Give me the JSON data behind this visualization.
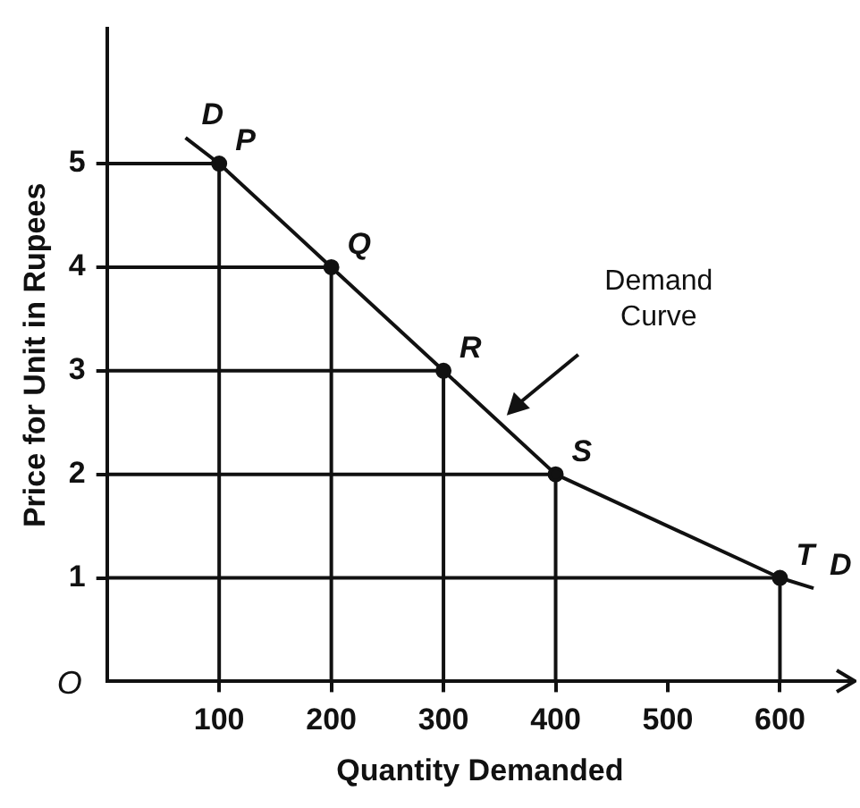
{
  "chart_data": {
    "type": "line",
    "xlabel": "Quantity Demanded",
    "ylabel": "Price for Unit in Rupees",
    "x": [
      70,
      100,
      200,
      300,
      400,
      600,
      630
    ],
    "series": [
      {
        "color": "#111111",
        "values": [
          5.25,
          5,
          4,
          3,
          2,
          1,
          0.9
        ]
      },
      {
        "color": "#111111",
        "marker": "none",
        "x": [
          0,
          100,
          100
        ],
        "values": [
          5,
          5,
          0
        ]
      },
      {
        "color": "#111111",
        "marker": "none",
        "x": [
          0,
          200,
          200
        ],
        "values": [
          4,
          4,
          0
        ]
      },
      {
        "color": "#111111",
        "marker": "none",
        "x": [
          0,
          300,
          300
        ],
        "values": [
          3,
          3,
          0
        ]
      },
      {
        "color": "#111111",
        "marker": "none",
        "x": [
          0,
          400,
          400
        ],
        "values": [
          2,
          2,
          0
        ]
      },
      {
        "color": "#111111",
        "marker": "none",
        "x": [
          0,
          600,
          600
        ],
        "values": [
          1,
          1,
          0
        ]
      }
    ],
    "xlim": [
      0,
      665
    ],
    "xticks": [
      100,
      200,
      300,
      400,
      500,
      600
    ],
    "ylim": [
      0,
      6.3
    ],
    "yticks": [
      1,
      2,
      3,
      4,
      5
    ],
    "grid": false,
    "legend": false,
    "marker": "circle",
    "line_style": "solid",
    "annotations": [
      {
        "text": "D",
        "x": 70,
        "y": 5.25
      },
      {
        "text": "P",
        "x": 100,
        "y": 5
      },
      {
        "text": "Q",
        "x": 200,
        "y": 4
      },
      {
        "text": "R",
        "x": 300,
        "y": 3
      },
      {
        "text": "S",
        "x": 400,
        "y": 2
      },
      {
        "text": "T",
        "x": 600,
        "y": 1
      },
      {
        "text": "D",
        "x": 630,
        "y": 0.9
      },
      "O",
      "Demand\nCurve"
    ]
  }
}
